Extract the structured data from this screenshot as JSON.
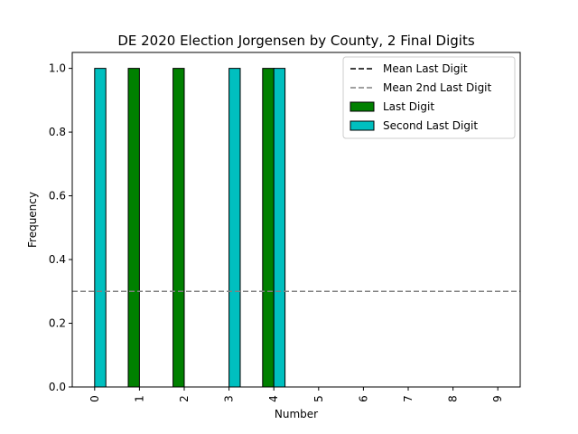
{
  "chart_data": {
    "type": "bar",
    "title": "DE 2020 Election Jorgensen by County, 2 Final Digits",
    "xlabel": "Number",
    "ylabel": "Frequency",
    "categories": [
      "0",
      "1",
      "2",
      "3",
      "4",
      "5",
      "6",
      "7",
      "8",
      "9"
    ],
    "ylim": [
      0,
      1.05
    ],
    "yticks": [
      "0.0",
      "0.2",
      "0.4",
      "0.6",
      "0.8",
      "1.0"
    ],
    "series": [
      {
        "name": "Last Digit",
        "color": "#008000",
        "values": [
          0,
          1,
          1,
          0,
          1,
          0,
          0,
          0,
          0,
          0
        ]
      },
      {
        "name": "Second Last Digit",
        "color": "#00bfbf",
        "values": [
          1,
          0,
          0,
          1,
          1,
          0,
          0,
          0,
          0,
          0
        ]
      }
    ],
    "reference_lines": [
      {
        "name": "Mean Last Digit",
        "value": 0.3,
        "color": "#000000",
        "style": "dashed"
      },
      {
        "name": "Mean 2nd Last Digit",
        "value": 0.3,
        "color": "#808080",
        "style": "dashed"
      }
    ],
    "legend_position": "top-right",
    "grid": false
  }
}
